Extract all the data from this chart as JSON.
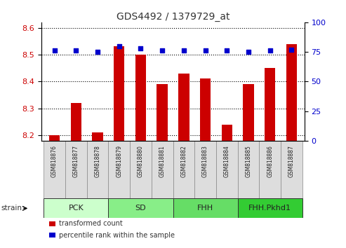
{
  "title": "GDS4492 / 1379729_at",
  "samples": [
    "GSM818876",
    "GSM818877",
    "GSM818878",
    "GSM818879",
    "GSM818880",
    "GSM818881",
    "GSM818882",
    "GSM818883",
    "GSM818884",
    "GSM818885",
    "GSM818886",
    "GSM818887"
  ],
  "transformed_counts": [
    8.2,
    8.32,
    8.21,
    8.53,
    8.5,
    8.39,
    8.43,
    8.41,
    8.24,
    8.39,
    8.45,
    8.54
  ],
  "percentile_ranks": [
    76,
    76,
    75,
    80,
    78,
    76,
    76,
    76,
    76,
    75,
    76,
    77
  ],
  "ylim_left": [
    8.18,
    8.62
  ],
  "ylim_right": [
    0,
    100
  ],
  "yticks_left": [
    8.2,
    8.3,
    8.4,
    8.5,
    8.6
  ],
  "yticks_right": [
    0,
    25,
    50,
    75,
    100
  ],
  "bar_color": "#cc0000",
  "dot_color": "#0000cc",
  "bar_bottom": 8.18,
  "bg_color": "#ffffff",
  "tick_label_color_left": "#cc0000",
  "tick_label_color_right": "#0000cc",
  "sample_box_color": "#dddddd",
  "group_defs": [
    {
      "label": "PCK",
      "start": 0,
      "end": 2,
      "color": "#ccffcc"
    },
    {
      "label": "SD",
      "start": 3,
      "end": 5,
      "color": "#88ee88"
    },
    {
      "label": "FHH",
      "start": 6,
      "end": 8,
      "color": "#66dd66"
    },
    {
      "label": "FHH.Pkhd1",
      "start": 9,
      "end": 11,
      "color": "#33cc33"
    }
  ],
  "legend_items": [
    {
      "label": "transformed count",
      "color": "#cc0000"
    },
    {
      "label": "percentile rank within the sample",
      "color": "#0000cc"
    }
  ]
}
